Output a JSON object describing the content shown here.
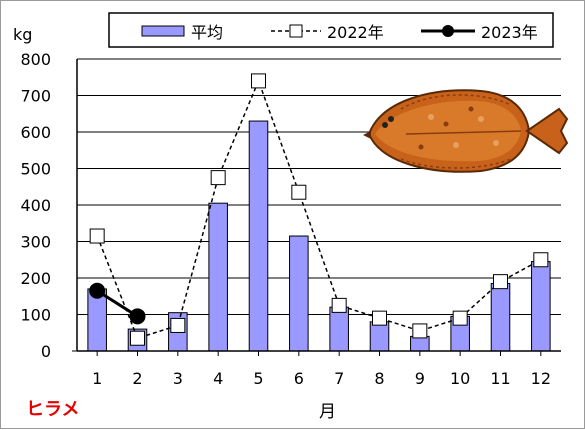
{
  "chart_data": {
    "type": "bar",
    "title": "",
    "ylabel": "kg",
    "xlabel": "月",
    "species_label": "ヒラメ",
    "ylim": [
      0,
      800
    ],
    "yticks": [
      0,
      100,
      200,
      300,
      400,
      500,
      600,
      700,
      800
    ],
    "categories": [
      "1",
      "2",
      "3",
      "4",
      "5",
      "6",
      "7",
      "8",
      "9",
      "10",
      "11",
      "12"
    ],
    "grid": true,
    "legend_position": "top",
    "series": [
      {
        "name": "平均",
        "kind": "bar",
        "color": "#9999ff",
        "values": [
          170,
          60,
          105,
          405,
          630,
          315,
          120,
          80,
          40,
          95,
          185,
          245
        ]
      },
      {
        "name": "2022年",
        "kind": "line-dashed-open-square",
        "color": "#000000",
        "values": [
          315,
          35,
          70,
          475,
          740,
          435,
          125,
          90,
          55,
          90,
          190,
          250
        ]
      },
      {
        "name": "2023年",
        "kind": "line-solid-filled-circle",
        "color": "#000000",
        "values": [
          165,
          95,
          null,
          null,
          null,
          null,
          null,
          null,
          null,
          null,
          null,
          null
        ]
      }
    ],
    "species_label_color": "#e60000"
  }
}
